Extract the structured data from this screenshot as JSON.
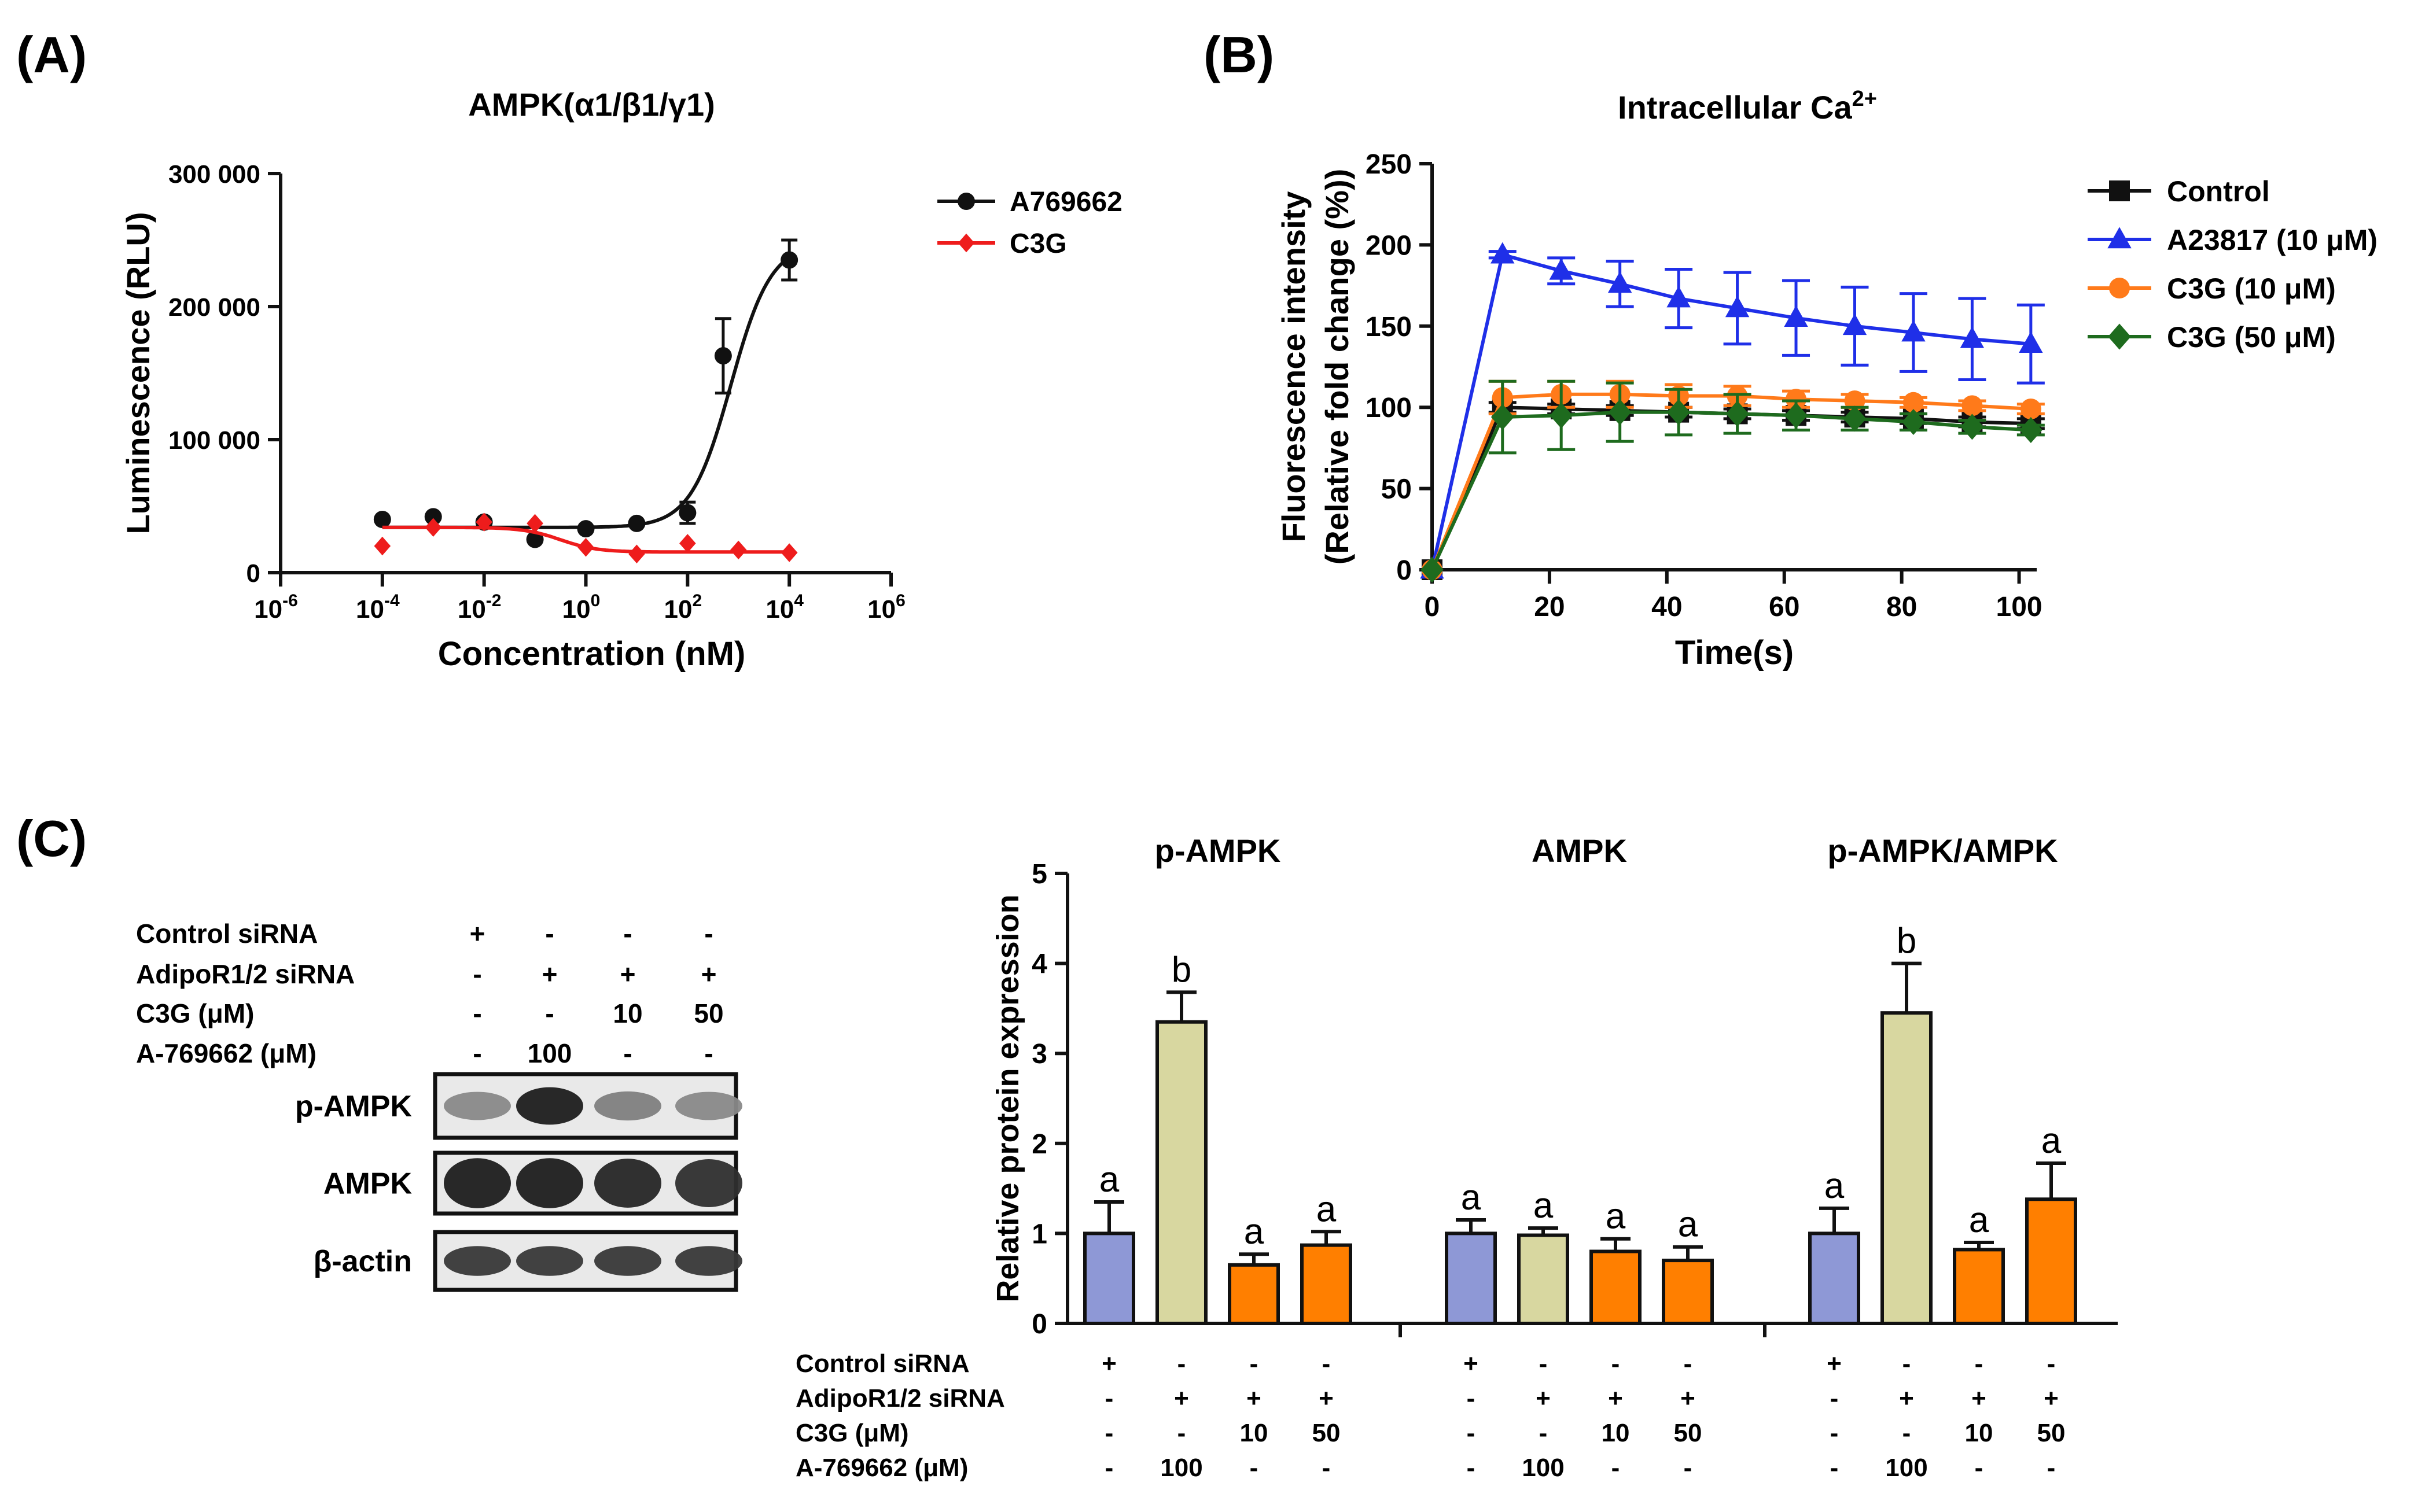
{
  "panel_labels": {
    "a": "(A)",
    "b": "(B)",
    "c": "(C)"
  },
  "colors": {
    "black": "#111111",
    "red": "#ee1c1c",
    "blue": "#1f2fe8",
    "orange": "#ff7a1a",
    "green": "#1e6b1e",
    "bar_periwinkle": "#8e98d6",
    "bar_khaki": "#d8d7a0",
    "bar_orange": "#ff7f00"
  },
  "chart_data": [
    {
      "id": "A",
      "type": "scatter",
      "title": "AMPK(α1/β1/γ1)",
      "xlabel": "Concentration (nM)",
      "ylabel": "Luminescence (RLU)",
      "xscale": "log10",
      "xlim_exp": [
        -6,
        6
      ],
      "x_tick_exps": [
        "-6",
        "-4",
        "-2",
        "0",
        "2",
        "4",
        "6"
      ],
      "ylim": [
        0,
        300000
      ],
      "y_ticks": [
        0,
        100000,
        200000,
        300000
      ],
      "y_tick_labels": [
        "0",
        "100 000",
        "200 000",
        "300 000"
      ],
      "legend_position": "top-right",
      "series": [
        {
          "name": "A769662",
          "color": "#111111",
          "marker": "circle",
          "x_exp": [
            -4,
            -3,
            -2,
            -1,
            0,
            1,
            2,
            2.7,
            4
          ],
          "y": [
            40000,
            42000,
            38000,
            25000,
            33000,
            37000,
            45000,
            163000,
            235000
          ],
          "err": [
            0,
            0,
            0,
            0,
            0,
            0,
            8000,
            28000,
            15000
          ],
          "fit": {
            "bottom": 34000,
            "top": 248000,
            "log_ec50": 2.85,
            "hill": 1.1
          }
        },
        {
          "name": "C3G",
          "color": "#ee1c1c",
          "marker": "diamond",
          "x_exp": [
            -4,
            -3,
            -2,
            -1,
            0,
            1,
            2,
            3,
            4
          ],
          "y": [
            20000,
            34000,
            38000,
            37000,
            19000,
            14000,
            22000,
            17000,
            15000
          ],
          "err": [
            0,
            0,
            0,
            0,
            0,
            0,
            0,
            0,
            0
          ],
          "fit": {
            "bottom": 15500,
            "top": 34000,
            "log_ec50": -0.5,
            "hill": -1.2
          }
        }
      ]
    },
    {
      "id": "B",
      "type": "line",
      "title": "Intracellular Ca",
      "title_sup": "2+",
      "xlabel": "Time(s)",
      "ylabel_line1": "Fluorescence intensity",
      "ylabel_line2": "(Relative fold change (%))",
      "xlim": [
        0,
        103
      ],
      "x_ticks": [
        0,
        20,
        40,
        60,
        80,
        100
      ],
      "ylim": [
        0,
        250
      ],
      "y_ticks": [
        0,
        50,
        100,
        150,
        200,
        250
      ],
      "legend_position": "right",
      "x": [
        0,
        12,
        22,
        32,
        42,
        52,
        62,
        72,
        82,
        92,
        102
      ],
      "series": [
        {
          "name": "Control",
          "color": "#111111",
          "marker": "square",
          "values": [
            0,
            100,
            99,
            98,
            97,
            96,
            95,
            94,
            93,
            91,
            90
          ],
          "err": [
            0,
            3,
            3,
            3,
            3,
            3,
            3,
            3,
            3,
            3,
            3
          ]
        },
        {
          "name": "A23817 (10 μM)",
          "color": "#1f2fe8",
          "marker": "triangle",
          "values": [
            0,
            194,
            184,
            176,
            167,
            161,
            155,
            150,
            146,
            142,
            139
          ],
          "err": [
            0,
            2,
            8,
            14,
            18,
            22,
            23,
            24,
            24,
            25,
            24
          ]
        },
        {
          "name": "C3G (10 μM)",
          "color": "#ff7a1a",
          "marker": "circle",
          "values": [
            0,
            106,
            108,
            108,
            107,
            107,
            105,
            104,
            103,
            101,
            99
          ],
          "err": [
            0,
            10,
            8,
            8,
            7,
            6,
            5,
            4,
            3,
            3,
            3
          ]
        },
        {
          "name": "C3G (50 μM)",
          "color": "#1e6b1e",
          "marker": "diamond",
          "values": [
            0,
            94,
            95,
            97,
            97,
            96,
            95,
            93,
            91,
            88,
            86
          ],
          "err": [
            0,
            22,
            21,
            18,
            14,
            12,
            9,
            7,
            5,
            4,
            3
          ]
        }
      ]
    },
    {
      "id": "C",
      "type": "bar",
      "ylabel": "Relative protein expression",
      "ylim": [
        0,
        5
      ],
      "y_ticks": [
        0,
        1,
        2,
        3,
        4,
        5
      ],
      "groups": [
        {
          "title": "p-AMPK",
          "values": [
            1.0,
            3.35,
            0.65,
            0.87
          ],
          "err": [
            0.35,
            0.33,
            0.12,
            0.15
          ],
          "letters": [
            "a",
            "b",
            "a",
            "a"
          ]
        },
        {
          "title": "AMPK",
          "values": [
            1.0,
            0.98,
            0.8,
            0.7
          ],
          "err": [
            0.15,
            0.08,
            0.14,
            0.15
          ],
          "letters": [
            "a",
            "a",
            "a",
            "a"
          ]
        },
        {
          "title": "p-AMPK/AMPK",
          "values": [
            1.0,
            3.45,
            0.82,
            1.38
          ],
          "err": [
            0.28,
            0.55,
            0.08,
            0.4
          ],
          "letters": [
            "a",
            "b",
            "a",
            "a"
          ]
        }
      ],
      "bar_colors": [
        "#8e98d6",
        "#d8d7a0",
        "#ff7f00",
        "#ff7f00"
      ]
    }
  ],
  "treatment_table": {
    "rows": [
      {
        "label": "Control siRNA",
        "values": [
          "+",
          "-",
          "-",
          "-"
        ]
      },
      {
        "label": "AdipoR1/2 siRNA",
        "values": [
          "-",
          "+",
          "+",
          "+"
        ]
      },
      {
        "label": "C3G (μM)",
        "values": [
          "-",
          "-",
          "10",
          "50"
        ]
      },
      {
        "label": "A-769662 (μM)",
        "values": [
          "-",
          "100",
          "-",
          "-"
        ]
      }
    ]
  },
  "blot": {
    "bands": [
      {
        "label": "p-AMPK",
        "intensities": [
          0.35,
          0.95,
          0.4,
          0.35
        ]
      },
      {
        "label": "AMPK",
        "intensities": [
          0.95,
          0.95,
          0.9,
          0.85
        ]
      },
      {
        "label": "β-actin",
        "intensities": [
          0.8,
          0.8,
          0.8,
          0.8
        ]
      }
    ]
  }
}
